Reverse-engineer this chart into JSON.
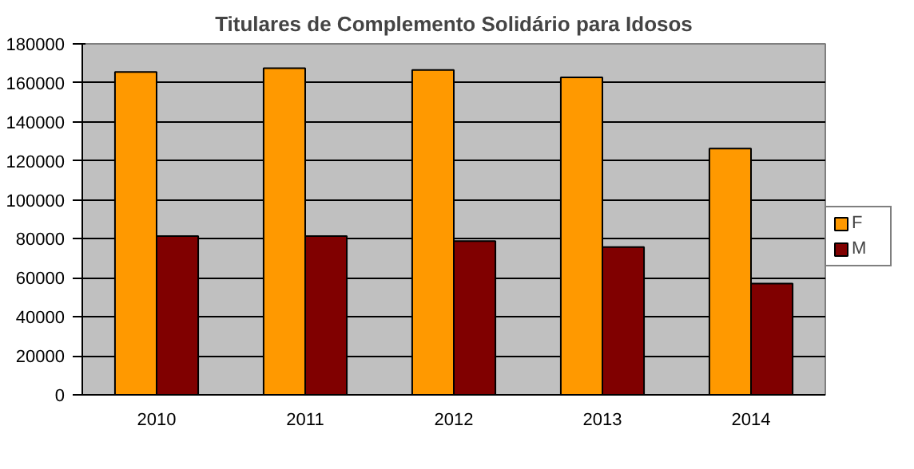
{
  "chart_data": {
    "type": "bar",
    "title": "Titulares de Complemento Solidário para Idosos",
    "categories": [
      "2010",
      "2011",
      "2012",
      "2013",
      "2014"
    ],
    "series": [
      {
        "name": "F",
        "color": "#ff9900",
        "values": [
          165600,
          167500,
          166600,
          162800,
          126300
        ]
      },
      {
        "name": "M",
        "color": "#800000",
        "values": [
          81400,
          81400,
          78900,
          75800,
          57100
        ]
      }
    ],
    "ylim": [
      0,
      180000
    ],
    "yticks": [
      0,
      20000,
      40000,
      60000,
      80000,
      100000,
      120000,
      140000,
      160000,
      180000
    ],
    "grid": "y",
    "legend": "right"
  }
}
